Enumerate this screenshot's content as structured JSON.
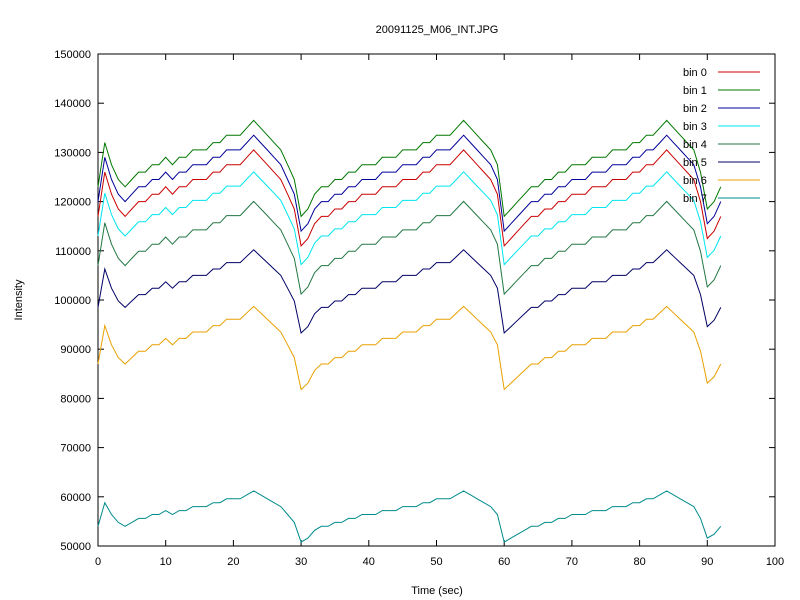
{
  "chart_data": {
    "type": "line",
    "title": "20091125_M06_INT.JPG",
    "xlabel": "Time (sec)",
    "ylabel": "Intensity",
    "xlim": [
      0,
      100
    ],
    "ylim": [
      50000,
      150000
    ],
    "xticks": [
      0,
      10,
      20,
      30,
      40,
      50,
      60,
      70,
      80,
      90,
      100
    ],
    "yticks": [
      50000,
      60000,
      70000,
      80000,
      90000,
      100000,
      110000,
      120000,
      130000,
      140000,
      150000
    ],
    "grid": false,
    "legend_position": "top-right",
    "x_step": 1,
    "base_offsets": [
      0,
      6,
      3,
      1,
      0,
      1,
      2,
      2,
      3,
      3,
      4,
      3,
      4,
      4,
      5,
      5,
      5,
      6,
      6,
      7,
      7,
      7,
      8,
      9,
      8,
      7,
      6,
      5,
      3,
      1,
      -4,
      -3,
      -1,
      0,
      0,
      1,
      1,
      2,
      2,
      3,
      3,
      3,
      4,
      4,
      4,
      5,
      5,
      5,
      6,
      6,
      7,
      7,
      7,
      8,
      9,
      8,
      7,
      6,
      5,
      3,
      -4,
      -3,
      -2,
      -1,
      0,
      0,
      1,
      1,
      2,
      2,
      3,
      3,
      3,
      4,
      4,
      4,
      5,
      5,
      5,
      6,
      6,
      7,
      7,
      8,
      9,
      8,
      7,
      6,
      5,
      2,
      -3,
      -2,
      0
    ],
    "series": [
      {
        "name": "bin 0",
        "color": "#cc0000",
        "base": 117000,
        "scale": 1500
      },
      {
        "name": "bin 1",
        "color": "#007700",
        "base": 123000,
        "scale": 1500
      },
      {
        "name": "bin 2",
        "color": "#000099",
        "base": 120000,
        "scale": 1500
      },
      {
        "name": "bin 3",
        "color": "#00e5ee",
        "base": 113000,
        "scale": 1450
      },
      {
        "name": "bin 4",
        "color": "#227744",
        "base": 107000,
        "scale": 1450
      },
      {
        "name": "bin 5",
        "color": "#000066",
        "base": 98500,
        "scale": 1300
      },
      {
        "name": "bin 6",
        "color": "#e8a000",
        "base": 87000,
        "scale": 1300
      },
      {
        "name": "bin 7",
        "color": "#008b8b",
        "base": 54000,
        "scale": 800
      }
    ]
  }
}
